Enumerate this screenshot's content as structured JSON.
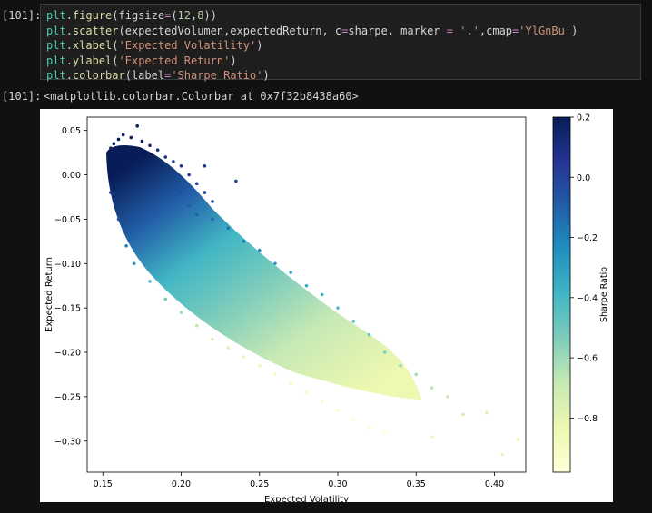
{
  "cell_in": {
    "prompt": "[101]:",
    "lines": [
      [
        {
          "t": "plt",
          "c": "kw"
        },
        {
          "t": ".",
          "c": ""
        },
        {
          "t": "figure",
          "c": "fn"
        },
        {
          "t": "(figsize",
          "c": ""
        },
        {
          "t": "=",
          "c": "op"
        },
        {
          "t": "(",
          "c": ""
        },
        {
          "t": "12",
          "c": "num"
        },
        {
          "t": ",",
          "c": ""
        },
        {
          "t": "8",
          "c": "num"
        },
        {
          "t": "))",
          "c": ""
        }
      ],
      [
        {
          "t": "plt",
          "c": "kw"
        },
        {
          "t": ".",
          "c": ""
        },
        {
          "t": "scatter",
          "c": "fn"
        },
        {
          "t": "(expectedVolumen,expectedReturn, c",
          "c": ""
        },
        {
          "t": "=",
          "c": "op"
        },
        {
          "t": "sharpe, marker ",
          "c": ""
        },
        {
          "t": "=",
          "c": "op"
        },
        {
          "t": " ",
          "c": ""
        },
        {
          "t": "'.'",
          "c": "str"
        },
        {
          "t": ",cmap",
          "c": ""
        },
        {
          "t": "=",
          "c": "op"
        },
        {
          "t": "'YlGnBu'",
          "c": "str"
        },
        {
          "t": ")",
          "c": ""
        }
      ],
      [
        {
          "t": "plt",
          "c": "kw"
        },
        {
          "t": ".",
          "c": ""
        },
        {
          "t": "xlabel",
          "c": "fn"
        },
        {
          "t": "(",
          "c": ""
        },
        {
          "t": "'Expected Volatility'",
          "c": "str"
        },
        {
          "t": ")",
          "c": ""
        }
      ],
      [
        {
          "t": "plt",
          "c": "kw"
        },
        {
          "t": ".",
          "c": ""
        },
        {
          "t": "ylabel",
          "c": "fn"
        },
        {
          "t": "(",
          "c": ""
        },
        {
          "t": "'Expected Return'",
          "c": "str"
        },
        {
          "t": ")",
          "c": ""
        }
      ],
      [
        {
          "t": "plt",
          "c": "kw"
        },
        {
          "t": ".",
          "c": ""
        },
        {
          "t": "colorbar",
          "c": "fn"
        },
        {
          "t": "(label",
          "c": ""
        },
        {
          "t": "=",
          "c": "op"
        },
        {
          "t": "'Sharpe Ratio'",
          "c": "str"
        },
        {
          "t": ")",
          "c": ""
        }
      ]
    ]
  },
  "cell_out": {
    "prompt": "[101]:",
    "text": "<matplotlib.colorbar.Colorbar at 0x7f32b8438a60>"
  },
  "chart_data": {
    "type": "scatter",
    "xlabel": "Expected Volatility",
    "ylabel": "Expected Return",
    "xlim": [
      0.14,
      0.42
    ],
    "ylim": [
      -0.335,
      0.065
    ],
    "xticks": [
      "0.15",
      "0.20",
      "0.25",
      "0.30",
      "0.35",
      "0.40"
    ],
    "xtick_values": [
      0.15,
      0.2,
      0.25,
      0.3,
      0.35,
      0.4
    ],
    "yticks": [
      "0.05",
      "0.00",
      "−0.05",
      "−0.10",
      "−0.15",
      "−0.20",
      "−0.25",
      "−0.30"
    ],
    "ytick_values": [
      0.05,
      0.0,
      -0.05,
      -0.1,
      -0.15,
      -0.2,
      -0.25,
      -0.3
    ],
    "colormap": "YlGnBu",
    "marker": ".",
    "colorbar": {
      "label": "Sharpe Ratio",
      "range": [
        -0.98,
        0.2
      ],
      "ticks": [
        "0.2",
        "0.0",
        "−0.2",
        "−0.4",
        "−0.6",
        "−0.8"
      ],
      "tick_values": [
        0.2,
        0.0,
        -0.2,
        -0.4,
        -0.6,
        -0.8
      ]
    },
    "points": [
      [
        0.155,
        0.03,
        0.18
      ],
      [
        0.157,
        0.035,
        0.19
      ],
      [
        0.16,
        0.04,
        0.2
      ],
      [
        0.163,
        0.045,
        0.2
      ],
      [
        0.168,
        0.042,
        0.19
      ],
      [
        0.172,
        0.055,
        0.2
      ],
      [
        0.175,
        0.038,
        0.17
      ],
      [
        0.18,
        0.033,
        0.15
      ],
      [
        0.185,
        0.028,
        0.12
      ],
      [
        0.19,
        0.02,
        0.1
      ],
      [
        0.195,
        0.015,
        0.08
      ],
      [
        0.2,
        0.01,
        0.06
      ],
      [
        0.205,
        0.0,
        0.03
      ],
      [
        0.21,
        -0.01,
        0.0
      ],
      [
        0.215,
        -0.02,
        -0.03
      ],
      [
        0.22,
        -0.03,
        -0.06
      ],
      [
        0.215,
        0.01,
        0.04
      ],
      [
        0.235,
        -0.007,
        0.0
      ],
      [
        0.2,
        -0.02,
        -0.03
      ],
      [
        0.205,
        -0.035,
        -0.07
      ],
      [
        0.21,
        -0.045,
        -0.1
      ],
      [
        0.22,
        -0.05,
        -0.12
      ],
      [
        0.23,
        -0.06,
        -0.15
      ],
      [
        0.24,
        -0.075,
        -0.19
      ],
      [
        0.25,
        -0.085,
        -0.23
      ],
      [
        0.26,
        -0.1,
        -0.27
      ],
      [
        0.27,
        -0.11,
        -0.31
      ],
      [
        0.28,
        -0.125,
        -0.35
      ],
      [
        0.29,
        -0.135,
        -0.38
      ],
      [
        0.3,
        -0.15,
        -0.42
      ],
      [
        0.31,
        -0.165,
        -0.46
      ],
      [
        0.32,
        -0.18,
        -0.5
      ],
      [
        0.33,
        -0.2,
        -0.54
      ],
      [
        0.34,
        -0.215,
        -0.58
      ],
      [
        0.35,
        -0.225,
        -0.62
      ],
      [
        0.36,
        -0.24,
        -0.66
      ],
      [
        0.37,
        -0.25,
        -0.7
      ],
      [
        0.38,
        -0.27,
        -0.74
      ],
      [
        0.395,
        -0.268,
        -0.78
      ],
      [
        0.405,
        -0.315,
        -0.82
      ],
      [
        0.415,
        -0.298,
        -0.8
      ],
      [
        0.36,
        -0.295,
        -0.85
      ],
      [
        0.155,
        -0.02,
        0.05
      ],
      [
        0.16,
        -0.05,
        -0.06
      ],
      [
        0.165,
        -0.08,
        -0.2
      ],
      [
        0.17,
        -0.1,
        -0.3
      ],
      [
        0.18,
        -0.12,
        -0.42
      ],
      [
        0.19,
        -0.14,
        -0.52
      ],
      [
        0.2,
        -0.155,
        -0.6
      ],
      [
        0.21,
        -0.17,
        -0.67
      ],
      [
        0.22,
        -0.185,
        -0.73
      ],
      [
        0.23,
        -0.195,
        -0.78
      ],
      [
        0.24,
        -0.205,
        -0.82
      ],
      [
        0.25,
        -0.215,
        -0.86
      ],
      [
        0.26,
        -0.225,
        -0.88
      ],
      [
        0.27,
        -0.235,
        -0.9
      ],
      [
        0.28,
        -0.245,
        -0.92
      ],
      [
        0.29,
        -0.255,
        -0.93
      ],
      [
        0.3,
        -0.265,
        -0.94
      ],
      [
        0.31,
        -0.275,
        -0.95
      ],
      [
        0.32,
        -0.285,
        -0.95
      ],
      [
        0.33,
        -0.29,
        -0.96
      ]
    ]
  }
}
